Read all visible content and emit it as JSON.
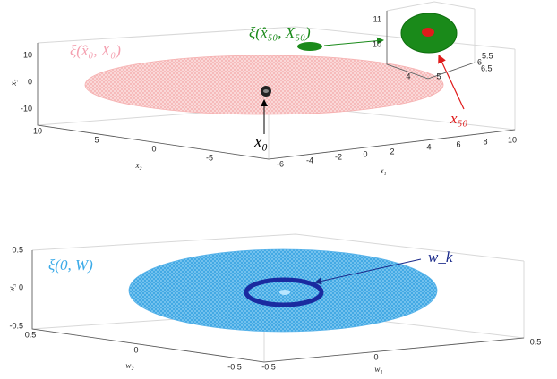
{
  "top": {
    "annotations": {
      "prior_set": "ξ(x̂₀, X₀)",
      "final_set": "ξ(x̂₅₀, X₅₀)",
      "initial_state": "x₀",
      "final_state": "x₅₀"
    },
    "z_axis": {
      "label": "x₃",
      "ticks": [
        10,
        0,
        -10
      ]
    },
    "y_axis": {
      "label": "x₂",
      "ticks": [
        10,
        5,
        0,
        -5
      ]
    },
    "x_axis": {
      "label": "x₁",
      "ticks": [
        -6,
        -4,
        -2,
        0,
        2,
        4,
        6,
        8,
        10
      ]
    },
    "inset": {
      "z_ticks": [
        11,
        10
      ],
      "y_ticks": [
        5.5,
        6,
        6.5
      ],
      "x_ticks": [
        4,
        5
      ]
    }
  },
  "bottom": {
    "annotations": {
      "noise_set": "ξ(0, W)",
      "noise": "w_k"
    },
    "z_axis": {
      "label": "w₃",
      "ticks": [
        0.5,
        0,
        -0.5
      ]
    },
    "y_axis": {
      "label": "w₂",
      "ticks": [
        0.5,
        0,
        -0.5
      ]
    },
    "x_axis": {
      "label": "w₁",
      "ticks": [
        -0.5,
        0,
        0.5
      ]
    }
  }
}
